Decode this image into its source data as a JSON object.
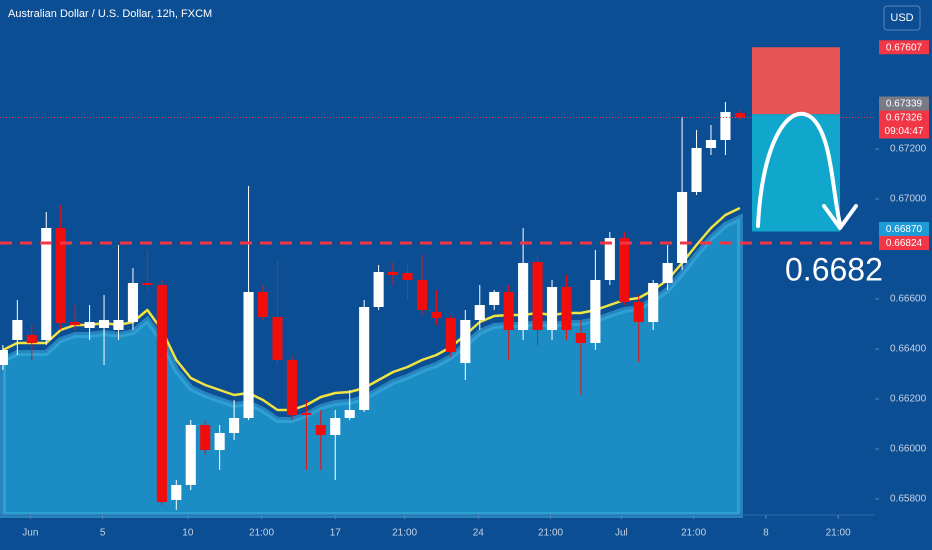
{
  "chart_data": {
    "type": "candlestick",
    "title": "Australian Dollar / U.S. Dollar, 12h, FXCM",
    "currency_label": "USD",
    "categories": [
      null,
      null,
      null,
      null,
      null,
      null,
      null,
      null,
      null,
      null,
      null,
      null,
      null,
      null,
      null,
      null,
      null,
      null,
      null,
      null,
      null,
      null,
      null,
      null,
      null,
      null,
      null,
      null,
      null,
      null,
      null,
      null,
      null,
      null,
      null,
      null,
      null,
      null,
      null,
      null,
      null,
      null,
      null,
      null,
      null,
      null,
      null,
      null,
      null,
      null,
      null,
      null
    ],
    "open": [
      0.66336,
      0.66436,
      0.66456,
      0.66436,
      0.66884,
      0.66508,
      0.66484,
      0.66484,
      0.66476,
      0.66508,
      0.66664,
      0.66656,
      0.65796,
      0.65856,
      0.66096,
      0.65996,
      0.66064,
      0.66124,
      0.66628,
      0.66528,
      0.66356,
      0.66144,
      0.66096,
      0.66056,
      0.66124,
      0.66156,
      0.66568,
      0.66708,
      0.66704,
      0.66676,
      0.66548,
      0.66524,
      0.66344,
      0.66516,
      0.66576,
      0.66628,
      0.66476,
      0.66748,
      0.66476,
      0.66648,
      0.66464,
      0.66424,
      0.66676,
      0.66844,
      0.66588,
      0.66508,
      0.66664,
      0.66744,
      0.67028,
      0.67204,
      0.67236,
      0.67344
    ],
    "high": [
      0.66416,
      0.66596,
      0.66496,
      0.66948,
      0.66976,
      0.66576,
      0.66576,
      0.66616,
      0.66816,
      0.66724,
      0.66796,
      0.66676,
      0.65876,
      0.66116,
      0.66116,
      0.66096,
      0.66196,
      0.67052,
      0.66656,
      0.66756,
      0.66376,
      0.66196,
      0.66156,
      0.66156,
      0.66236,
      0.66596,
      0.66736,
      0.66748,
      0.66744,
      0.66776,
      0.66636,
      0.66536,
      0.66556,
      0.66656,
      0.66636,
      0.66656,
      0.66884,
      0.66776,
      0.66676,
      0.66696,
      0.66516,
      0.66796,
      0.66868,
      0.66868,
      0.66616,
      0.66676,
      0.66816,
      0.67328,
      0.67276,
      0.67296,
      0.67388,
      0.67356
    ],
    "low": [
      0.66316,
      0.66376,
      0.66356,
      0.66416,
      0.66476,
      0.66476,
      0.66436,
      0.66336,
      0.66436,
      0.66476,
      0.66636,
      0.65776,
      0.65756,
      0.65836,
      0.65976,
      0.65916,
      0.66036,
      0.66116,
      0.66516,
      0.66336,
      0.66116,
      0.65916,
      0.65916,
      0.65876,
      0.66116,
      0.66148,
      0.66556,
      0.66656,
      0.66596,
      0.66536,
      0.66496,
      0.66368,
      0.66276,
      0.66476,
      0.66556,
      0.66356,
      0.66436,
      0.66416,
      0.66436,
      0.66436,
      0.66216,
      0.66396,
      0.66656,
      0.66576,
      0.66348,
      0.66476,
      0.66636,
      0.66716,
      0.67016,
      0.67176,
      0.67176,
      0.67316
    ],
    "close": [
      0.66396,
      0.66516,
      0.66424,
      0.66884,
      0.66504,
      0.66496,
      0.66508,
      0.66516,
      0.66516,
      0.66664,
      0.66656,
      0.65788,
      0.65856,
      0.66096,
      0.65996,
      0.66064,
      0.66124,
      0.66628,
      0.66528,
      0.66356,
      0.66136,
      0.66136,
      0.66056,
      0.66124,
      0.66156,
      0.66568,
      0.66708,
      0.66696,
      0.66676,
      0.66556,
      0.66524,
      0.66388,
      0.66516,
      0.66576,
      0.66628,
      0.66476,
      0.66744,
      0.66476,
      0.66648,
      0.66476,
      0.66424,
      0.66676,
      0.66844,
      0.66588,
      0.66508,
      0.66664,
      0.66744,
      0.67028,
      0.67204,
      0.67236,
      0.67348,
      0.67326
    ],
    "up_color": "#ffffff",
    "down_color": "#f20d0d",
    "overlays": [
      {
        "kind": "area",
        "color": "#1b8cc4",
        "values": [
          0.66356,
          0.66384,
          0.66384,
          0.66384,
          0.66436,
          0.66456,
          0.66456,
          0.66464,
          0.66456,
          0.66468,
          0.66516,
          0.66436,
          0.66316,
          0.66244,
          0.66216,
          0.66196,
          0.66176,
          0.66184,
          0.66156,
          0.66116,
          0.66116,
          0.66136,
          0.66168,
          0.66184,
          0.66188,
          0.66204,
          0.66236,
          0.66268,
          0.66288,
          0.66316,
          0.66336,
          0.66368,
          0.66416,
          0.66468,
          0.66492,
          0.66496,
          0.66496,
          0.66504,
          0.66496,
          0.66504,
          0.66504,
          0.66516,
          0.66536,
          0.66556,
          0.66564,
          0.66596,
          0.66636,
          0.66704,
          0.66776,
          0.66844,
          0.66896,
          0.66924
        ]
      },
      {
        "kind": "line",
        "color": "#f2e440",
        "values": [
          0.66396,
          0.66424,
          0.66424,
          0.66424,
          0.66476,
          0.66496,
          0.66496,
          0.66504,
          0.66496,
          0.66508,
          0.66556,
          0.66476,
          0.66356,
          0.66284,
          0.66256,
          0.66236,
          0.66216,
          0.66224,
          0.66196,
          0.66156,
          0.66156,
          0.66176,
          0.66208,
          0.66224,
          0.66228,
          0.66244,
          0.66276,
          0.66308,
          0.66328,
          0.66356,
          0.66376,
          0.66408,
          0.66456,
          0.66508,
          0.66532,
          0.66536,
          0.66536,
          0.66544,
          0.66536,
          0.66544,
          0.66544,
          0.66556,
          0.66576,
          0.66596,
          0.66604,
          0.66636,
          0.66676,
          0.66744,
          0.66816,
          0.66884,
          0.66936,
          0.66964
        ]
      }
    ],
    "xlim": [
      -0.2,
      60.35
    ],
    "xticks": [
      {
        "value": 1.9,
        "label": "Jun"
      },
      {
        "value": 6.9,
        "label": "5"
      },
      {
        "value": 12.8,
        "label": "10"
      },
      {
        "value": 17.9,
        "label": "21:00"
      },
      {
        "value": 23,
        "label": "17"
      },
      {
        "value": 27.8,
        "label": "21:00"
      },
      {
        "value": 32.9,
        "label": "24"
      },
      {
        "value": 37.9,
        "label": "21:00"
      },
      {
        "value": 42.8,
        "label": "Jul"
      },
      {
        "value": 47.8,
        "label": "21:00"
      },
      {
        "value": 52.8,
        "label": "8"
      },
      {
        "value": 57.8,
        "label": "21:00"
      }
    ],
    "ylim": [
      0.65736,
      0.67796
    ],
    "yticks": [
      {
        "value": 0.658,
        "label": "0.65800"
      },
      {
        "value": 0.66,
        "label": "0.66000"
      },
      {
        "value": 0.662,
        "label": "0.66200"
      },
      {
        "value": 0.664,
        "label": "0.66400"
      },
      {
        "value": 0.666,
        "label": "0.66600"
      },
      {
        "value": 0.67,
        "label": "0.67000"
      },
      {
        "value": 0.672,
        "label": "0.67200"
      }
    ],
    "grid": false,
    "price_labels": [
      {
        "price": 0.67607,
        "color": "#f23645"
      },
      {
        "price": 0.67339,
        "color": "#787b86"
      },
      {
        "price": 0.67326,
        "color": "#f23645",
        "countdown": "09:04:47"
      },
      {
        "price": {
          "value": 0.6687,
          "label": "0.66870"
        },
        "color": "#1e9bd7"
      },
      {
        "price": 0.66824,
        "color": "#f23645"
      }
    ],
    "annotation": "0.6682"
  }
}
